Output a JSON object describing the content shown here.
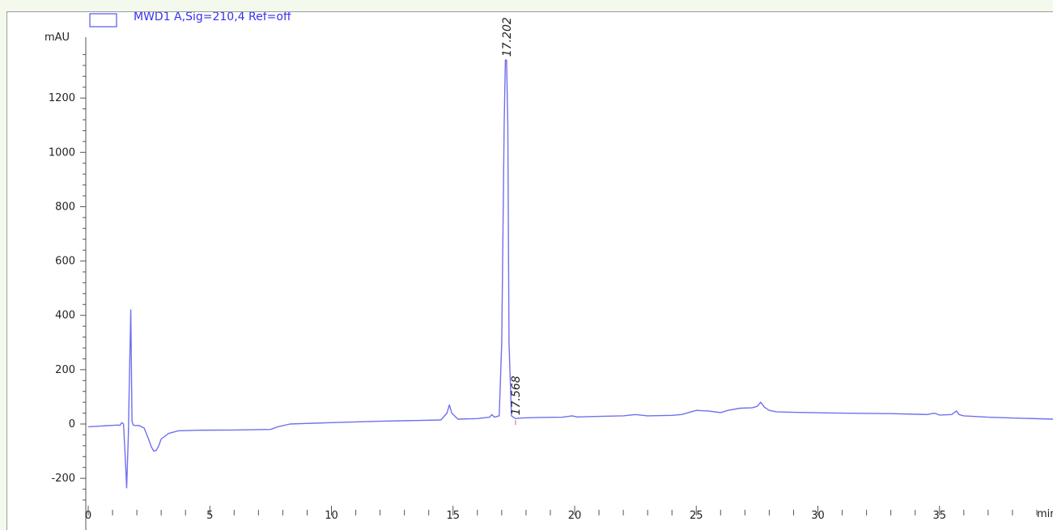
{
  "chart_data": {
    "type": "line",
    "legend": {
      "label": "MWD1 A,Sig=210,4 Ref=off",
      "placement": "top-left"
    },
    "y_unit": "mAU",
    "x_unit": "min",
    "xlim": [
      0,
      39.7
    ],
    "ylim": [
      -300,
      1400
    ],
    "x_ticks": [
      0,
      5,
      10,
      15,
      20,
      25,
      30,
      35
    ],
    "y_ticks": [
      -200,
      0,
      200,
      400,
      600,
      800,
      1000,
      1200
    ],
    "series": [
      {
        "color": "#7070ee",
        "x": [
          0.0,
          1.0,
          1.2,
          1.3,
          1.38,
          1.45,
          1.52,
          1.58,
          1.65,
          1.7,
          1.75,
          1.8,
          1.85,
          1.9,
          2.1,
          2.3,
          2.5,
          2.6,
          2.7,
          2.8,
          2.9,
          3.0,
          3.3,
          3.7,
          4.5,
          6.0,
          7.5,
          7.8,
          8.3,
          10.0,
          12.0,
          14.5,
          14.75,
          14.85,
          14.95,
          15.2,
          16.0,
          16.5,
          16.6,
          16.7,
          16.9,
          17.0,
          17.1,
          17.15,
          17.202,
          17.25,
          17.3,
          17.4,
          17.568,
          17.8,
          18.5,
          19.5,
          19.9,
          20.1,
          21.0,
          22.0,
          22.5,
          23.0,
          24.0,
          24.4,
          25.0,
          25.5,
          26.0,
          26.3,
          26.8,
          27.3,
          27.5,
          27.65,
          27.8,
          28.0,
          28.3,
          29.0,
          31.0,
          33.0,
          34.5,
          34.8,
          35.0,
          35.5,
          35.7,
          35.8,
          36.0,
          37.0,
          38.0,
          39.7
        ],
        "y": [
          -10,
          -5,
          -4,
          -5,
          5,
          0,
          -120,
          -235,
          -40,
          200,
          420,
          10,
          -4,
          -5,
          -6,
          -15,
          -60,
          -85,
          -100,
          -97,
          -80,
          -55,
          -35,
          -25,
          -23,
          -22,
          -20,
          -10,
          0,
          5,
          10,
          15,
          40,
          70,
          40,
          18,
          20,
          25,
          35,
          25,
          30,
          300,
          1100,
          1340,
          1340,
          1100,
          300,
          30,
          20,
          22,
          24,
          25,
          30,
          26,
          28,
          30,
          35,
          30,
          32,
          35,
          50,
          48,
          42,
          50,
          58,
          60,
          65,
          80,
          62,
          50,
          45,
          43,
          40,
          38,
          35,
          40,
          33,
          35,
          48,
          35,
          30,
          25,
          22,
          18
        ]
      }
    ],
    "annotations": [
      {
        "label": "17.202",
        "x": 17.202,
        "y": 1340
      },
      {
        "label": "17.568",
        "x": 17.568,
        "y": 20
      }
    ]
  }
}
